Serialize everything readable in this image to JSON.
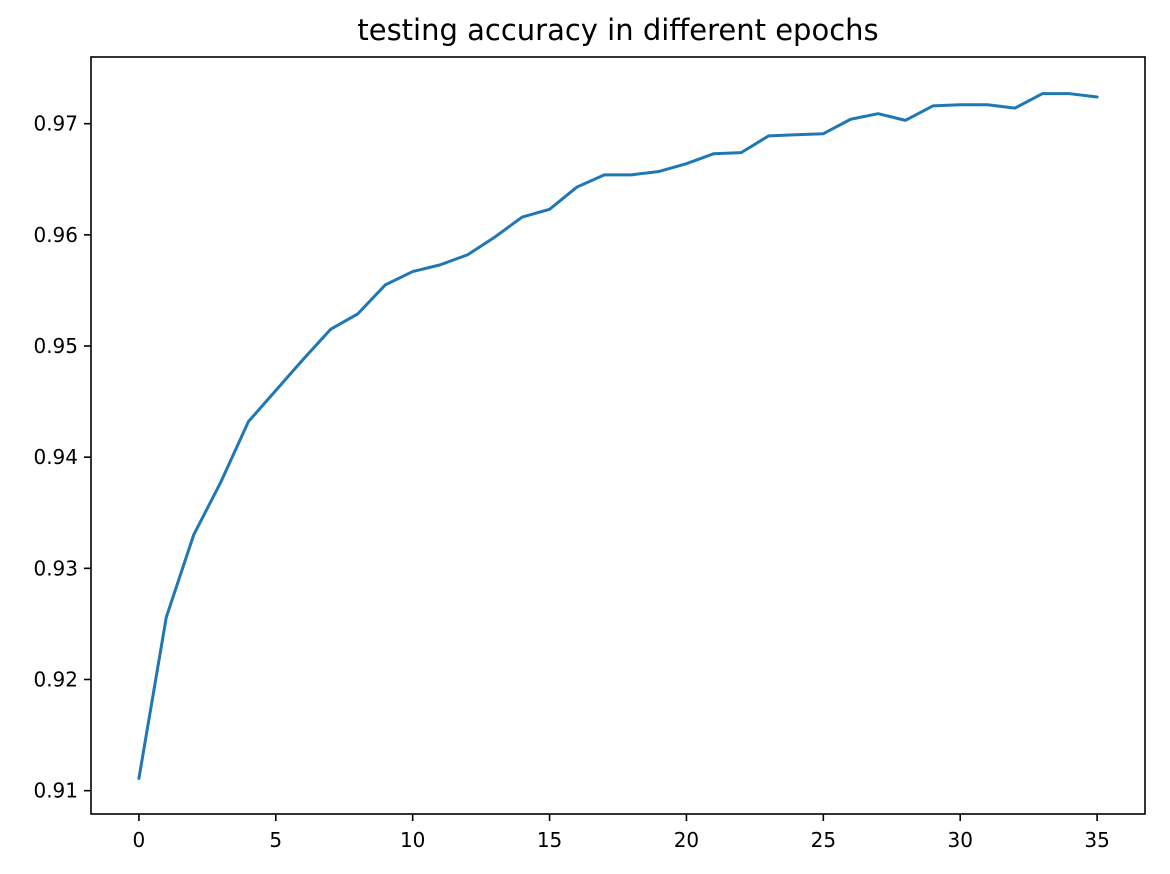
{
  "chart_data": {
    "type": "line",
    "title": "testing accuracy in different epochs",
    "xlabel": "",
    "ylabel": "",
    "xlim": [
      -1.75,
      36.75
    ],
    "ylim": [
      0.9079,
      0.976
    ],
    "xticks": [
      0,
      5,
      10,
      15,
      20,
      25,
      30,
      35
    ],
    "xtick_labels": [
      "0",
      "5",
      "10",
      "15",
      "20",
      "25",
      "30",
      "35"
    ],
    "yticks": [
      0.91,
      0.92,
      0.93,
      0.94,
      0.95,
      0.96,
      0.97
    ],
    "ytick_labels": [
      "0.91",
      "0.92",
      "0.93",
      "0.94",
      "0.95",
      "0.96",
      "0.97"
    ],
    "grid": false,
    "series": [
      {
        "color": "#1f77b4",
        "x": [
          0,
          1,
          2,
          3,
          4,
          5,
          6,
          7,
          8,
          9,
          10,
          11,
          12,
          13,
          14,
          15,
          16,
          17,
          18,
          19,
          20,
          21,
          22,
          23,
          24,
          25,
          26,
          27,
          28,
          29,
          30,
          31,
          32,
          33,
          34,
          35
        ],
        "y": [
          0.9111,
          0.9256,
          0.933,
          0.9378,
          0.9432,
          0.946,
          0.9488,
          0.9515,
          0.9529,
          0.9555,
          0.9567,
          0.9573,
          0.9582,
          0.9598,
          0.9616,
          0.9623,
          0.9643,
          0.9654,
          0.9654,
          0.9657,
          0.9664,
          0.9673,
          0.9674,
          0.9689,
          0.969,
          0.9691,
          0.9704,
          0.9709,
          0.9703,
          0.9716,
          0.9717,
          0.9717,
          0.9714,
          0.9727,
          0.9727,
          0.9724
        ]
      }
    ]
  }
}
